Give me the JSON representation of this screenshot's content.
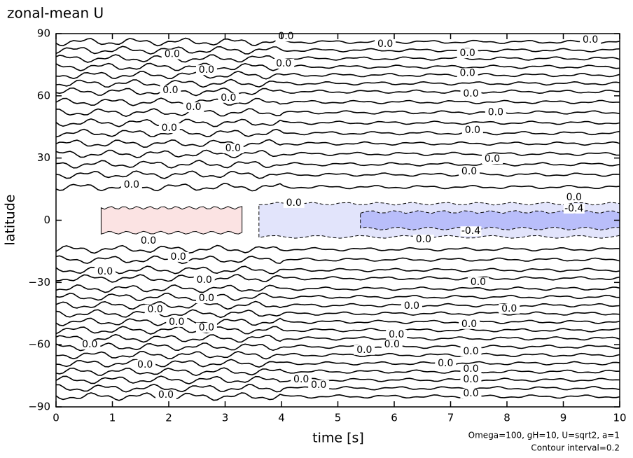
{
  "chart_data": {
    "type": "contour",
    "title": "zonal-mean U",
    "xlabel": "time [s]",
    "ylabel": "latitude",
    "annotations": [
      "Omega=100, gH=10, U=sqrt2, a=1",
      "Contour interval=0.2"
    ],
    "xlim": [
      0,
      10
    ],
    "ylim": [
      -90,
      90
    ],
    "xticks": [
      0,
      1,
      2,
      3,
      4,
      5,
      6,
      7,
      8,
      9,
      10
    ],
    "yticks": [
      {
        "value": -90,
        "label": "−90"
      },
      {
        "value": -60,
        "label": "−60"
      },
      {
        "value": -30,
        "label": "−30"
      },
      0,
      30,
      60,
      90
    ],
    "zero_contours": [
      86,
      82,
      78,
      74,
      70,
      66,
      62,
      57,
      52,
      47,
      42,
      37,
      32,
      27,
      22,
      16,
      -14,
      -19,
      -24,
      -28,
      -33,
      -37,
      -41,
      -45,
      -49,
      -53,
      -57,
      -61,
      -65,
      -69,
      -73,
      -77,
      -81,
      -85
    ],
    "filled_contours": [
      {
        "level": 0.2,
        "color": "#fbe3e3",
        "x": [
          0.8,
          3.3
        ],
        "y": [
          -6,
          6
        ]
      },
      {
        "level": -0.2,
        "color": "#e2e4fb",
        "x": [
          3.6,
          10
        ],
        "y": [
          -8,
          8
        ]
      },
      {
        "level": -0.4,
        "color": "#b9befa",
        "x": [
          5.4,
          10
        ],
        "y": [
          -4,
          4
        ]
      }
    ],
    "contour_labels": [
      {
        "value": 0,
        "label": "0.0",
        "x": 4.08,
        "y": 88.6
      },
      {
        "value": 0,
        "label": "0.0",
        "x": 5.84,
        "y": 85
      },
      {
        "value": 0,
        "label": "0.0",
        "x": 9.48,
        "y": 87
      },
      {
        "value": 0,
        "label": "0.0",
        "x": 2.06,
        "y": 80
      },
      {
        "value": 0,
        "label": "0.0",
        "x": 4.04,
        "y": 75.5
      },
      {
        "value": 0,
        "label": "0.0",
        "x": 7.3,
        "y": 80.5
      },
      {
        "value": 0,
        "label": "0.0",
        "x": 7.3,
        "y": 71
      },
      {
        "value": 0,
        "label": "0.0",
        "x": 2.67,
        "y": 72.4
      },
      {
        "value": 0,
        "label": "0.0",
        "x": 2.03,
        "y": 62.6
      },
      {
        "value": 0,
        "label": "0.0",
        "x": 3.06,
        "y": 59
      },
      {
        "value": 0,
        "label": "0.0",
        "x": 7.36,
        "y": 61
      },
      {
        "value": 0,
        "label": "0.0",
        "x": 2.44,
        "y": 54.5
      },
      {
        "value": 0,
        "label": "0.0",
        "x": 2.01,
        "y": 44.4
      },
      {
        "value": 0,
        "label": "0.0",
        "x": 7.8,
        "y": 52
      },
      {
        "value": 0,
        "label": "0.0",
        "x": 7.39,
        "y": 43.4
      },
      {
        "value": 0,
        "label": "0.0",
        "x": 3.14,
        "y": 34.6
      },
      {
        "value": 0,
        "label": "0.0",
        "x": 7.74,
        "y": 29.5
      },
      {
        "value": 0,
        "label": "0.0",
        "x": 7.33,
        "y": 23.5
      },
      {
        "value": 0,
        "label": "0.0",
        "x": 1.34,
        "y": 17
      },
      {
        "value": 0,
        "label": "0.0",
        "x": 4.22,
        "y": 8.3
      },
      {
        "value": 0,
        "label": "0.0",
        "x": 9.19,
        "y": 11
      },
      {
        "value": -0.4,
        "label": "-0.4",
        "x": 9.19,
        "y": 5.6
      },
      {
        "value": -0.4,
        "label": "-0.4",
        "x": 7.36,
        "y": -5.3
      },
      {
        "value": 0,
        "label": "0.0",
        "x": 1.64,
        "y": -10
      },
      {
        "value": 0,
        "label": "0.0",
        "x": 6.52,
        "y": -9.3
      },
      {
        "value": 0,
        "label": "0.0",
        "x": 2.17,
        "y": -17.7
      },
      {
        "value": 0,
        "label": "0.0",
        "x": 0.87,
        "y": -24.8
      },
      {
        "value": 0,
        "label": "0.0",
        "x": 2.63,
        "y": -28.9
      },
      {
        "value": 0,
        "label": "0.0",
        "x": 7.49,
        "y": -29.9
      },
      {
        "value": 0,
        "label": "0.0",
        "x": 2.67,
        "y": -37.7
      },
      {
        "value": 0,
        "label": "0.0",
        "x": 6.31,
        "y": -41.4
      },
      {
        "value": 0,
        "label": "0.0",
        "x": 1.76,
        "y": -43
      },
      {
        "value": 0,
        "label": "0.0",
        "x": 8.04,
        "y": -42.7
      },
      {
        "value": 0,
        "label": "0.0",
        "x": 2.14,
        "y": -49.1
      },
      {
        "value": 0,
        "label": "0.0",
        "x": 7.33,
        "y": -50.1
      },
      {
        "value": 0,
        "label": "0.0",
        "x": 2.67,
        "y": -51.8
      },
      {
        "value": 0,
        "label": "0.0",
        "x": 6.04,
        "y": -55.2
      },
      {
        "value": 0,
        "label": "0.0",
        "x": 0.6,
        "y": -60
      },
      {
        "value": 0,
        "label": "0.0",
        "x": 5.47,
        "y": -62.6
      },
      {
        "value": 0,
        "label": "0.0",
        "x": 5.96,
        "y": -60
      },
      {
        "value": 0,
        "label": "0.0",
        "x": 7.36,
        "y": -63.3
      },
      {
        "value": 0,
        "label": "0.0",
        "x": 6.91,
        "y": -69
      },
      {
        "value": 0,
        "label": "0.0",
        "x": 1.58,
        "y": -69.7
      },
      {
        "value": 0,
        "label": "0.0",
        "x": 7.36,
        "y": -71.8
      },
      {
        "value": 0,
        "label": "0.0",
        "x": 4.35,
        "y": -76.8
      },
      {
        "value": 0,
        "label": "0.0",
        "x": 4.66,
        "y": -79.5
      },
      {
        "value": 0,
        "label": "0.0",
        "x": 7.36,
        "y": -76.8
      },
      {
        "value": 0,
        "label": "0.0",
        "x": 1.95,
        "y": -84.3
      },
      {
        "value": 0,
        "label": "0.0",
        "x": 7.36,
        "y": -83.6
      }
    ]
  }
}
